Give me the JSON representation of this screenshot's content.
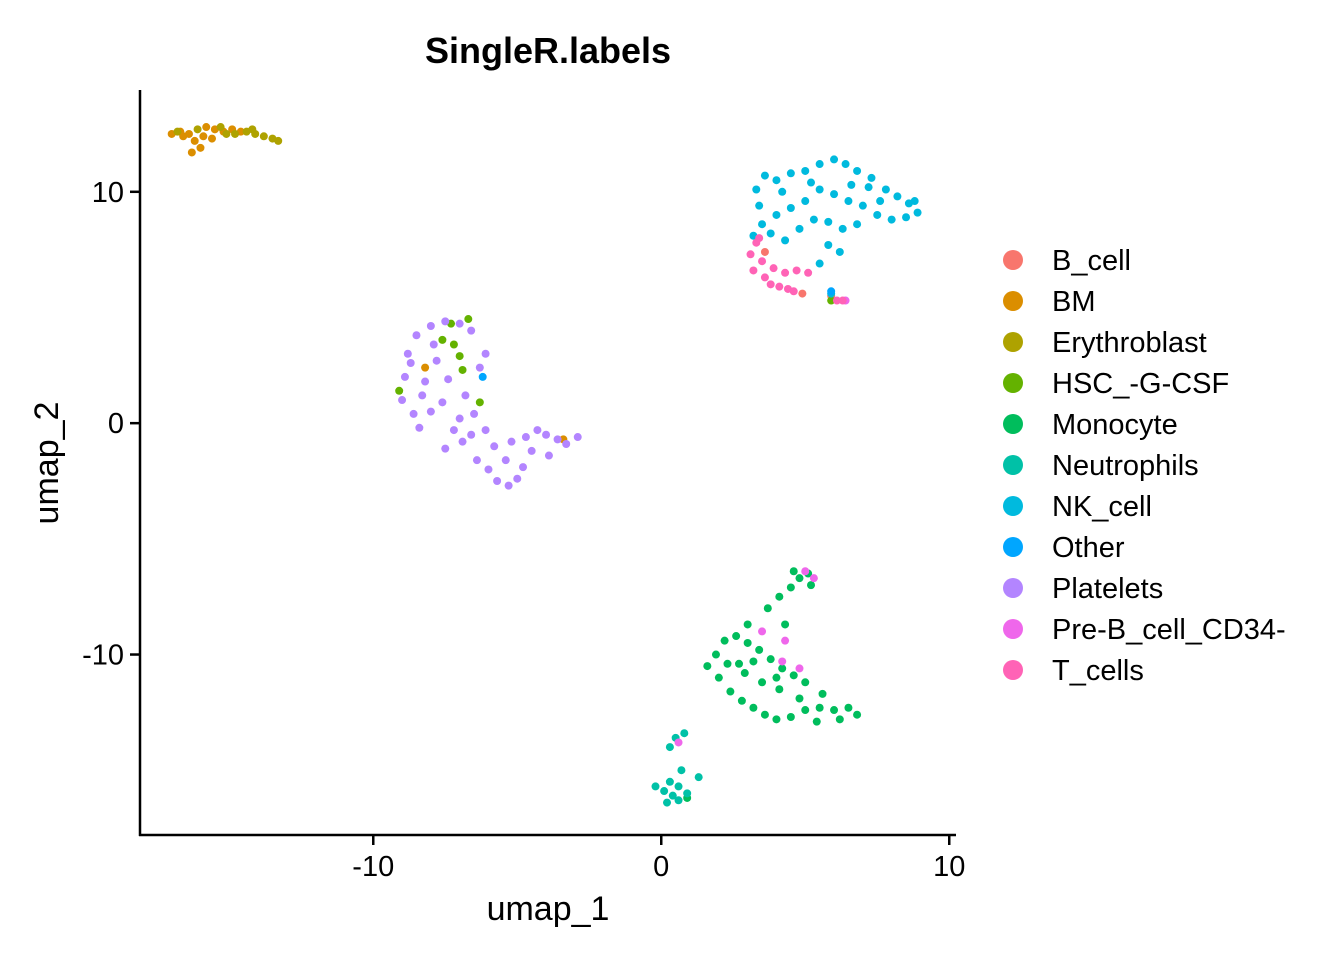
{
  "chart_data": {
    "type": "scatter",
    "title": "SingleR.labels",
    "xlabel": "umap_1",
    "ylabel": "umap_2",
    "xlim": [
      -18.1,
      10.2
    ],
    "ylim": [
      -17.8,
      14.4
    ],
    "xticks": [
      -10,
      0,
      10
    ],
    "yticks": [
      -10,
      0,
      10
    ],
    "xtick_labels": [
      "-10",
      "0",
      "10"
    ],
    "ytick_labels": [
      "-10",
      "0",
      "10"
    ],
    "grid": false,
    "legend_position": "right",
    "series": [
      {
        "name": "B_cell",
        "color": "#F8766D",
        "points": [
          [
            4.9,
            5.6
          ],
          [
            5.9,
            5.5
          ],
          [
            3.6,
            7.4
          ]
        ]
      },
      {
        "name": "BM",
        "color": "#DB8E00",
        "points": [
          [
            -17,
            12.5
          ],
          [
            -16.7,
            12.6
          ],
          [
            -16.4,
            12.5
          ],
          [
            -16.2,
            12.2
          ],
          [
            -16,
            11.9
          ],
          [
            -16.3,
            11.7
          ],
          [
            -15.8,
            12.8
          ],
          [
            -15.5,
            12.7
          ],
          [
            -15.2,
            12.6
          ],
          [
            -14.9,
            12.7
          ],
          [
            -15.6,
            12.3
          ],
          [
            -16.6,
            12.4
          ],
          [
            -14.6,
            12.6
          ],
          [
            -15.9,
            12.4
          ],
          [
            -3.4,
            -0.7
          ],
          [
            -8.2,
            2.4
          ]
        ]
      },
      {
        "name": "Erythroblast",
        "color": "#AEA200",
        "points": [
          [
            -16.8,
            12.6
          ],
          [
            -16.1,
            12.7
          ],
          [
            -15.3,
            12.8
          ],
          [
            -14.8,
            12.5
          ],
          [
            -14.4,
            12.6
          ],
          [
            -14.1,
            12.5
          ],
          [
            -13.8,
            12.4
          ],
          [
            -13.5,
            12.3
          ],
          [
            -13.3,
            12.2
          ],
          [
            -14.2,
            12.7
          ],
          [
            -15.1,
            12.5
          ]
        ]
      },
      {
        "name": "HSC_-G-CSF",
        "color": "#64B200",
        "points": [
          [
            -7.3,
            4.3
          ],
          [
            -6.7,
            4.5
          ],
          [
            -7.6,
            3.6
          ],
          [
            -7,
            2.9
          ],
          [
            -7.2,
            3.4
          ],
          [
            -9.1,
            1.4
          ],
          [
            -6.9,
            2.3
          ],
          [
            -6.3,
            0.9
          ],
          [
            5.9,
            5.3
          ]
        ]
      },
      {
        "name": "Monocyte",
        "color": "#00BD5C",
        "points": [
          [
            1.6,
            -10.5
          ],
          [
            1.9,
            -10.0
          ],
          [
            2.2,
            -9.4
          ],
          [
            2.6,
            -9.2
          ],
          [
            3.0,
            -9.5
          ],
          [
            3.4,
            -9.8
          ],
          [
            3.8,
            -10.2
          ],
          [
            4.2,
            -10.6
          ],
          [
            4.6,
            -10.9
          ],
          [
            5.0,
            -11.2
          ],
          [
            2.0,
            -11.0
          ],
          [
            2.4,
            -11.6
          ],
          [
            2.8,
            -12.0
          ],
          [
            3.2,
            -12.3
          ],
          [
            3.6,
            -12.6
          ],
          [
            4.0,
            -12.8
          ],
          [
            4.5,
            -12.7
          ],
          [
            5.0,
            -12.4
          ],
          [
            5.5,
            -12.3
          ],
          [
            6.0,
            -12.4
          ],
          [
            6.5,
            -12.3
          ],
          [
            6.8,
            -12.6
          ],
          [
            6.2,
            -12.8
          ],
          [
            5.4,
            -12.9
          ],
          [
            4.8,
            -11.9
          ],
          [
            4.1,
            -11.5
          ],
          [
            3.5,
            -11.2
          ],
          [
            2.9,
            -10.8
          ],
          [
            2.3,
            -10.4
          ],
          [
            3.2,
            -10.3
          ],
          [
            4.0,
            -11.0
          ],
          [
            5.6,
            -11.7
          ],
          [
            3.0,
            -8.7
          ],
          [
            3.7,
            -8.0
          ],
          [
            4.1,
            -7.5
          ],
          [
            4.5,
            -7.1
          ],
          [
            4.8,
            -6.7
          ],
          [
            5.1,
            -6.5
          ],
          [
            4.6,
            -6.4
          ],
          [
            5.2,
            -7.0
          ],
          [
            4.3,
            -8.7
          ],
          [
            2.7,
            -10.4
          ],
          [
            0.9,
            -16.2
          ]
        ]
      },
      {
        "name": "Neutrophils",
        "color": "#00C1A7",
        "points": [
          [
            -0.2,
            -15.7
          ],
          [
            0.1,
            -15.9
          ],
          [
            0.4,
            -16.1
          ],
          [
            0.6,
            -16.3
          ],
          [
            0.9,
            -16.0
          ],
          [
            0.3,
            -15.5
          ],
          [
            0.6,
            -15.7
          ],
          [
            1.3,
            -15.3
          ],
          [
            0.3,
            -14.0
          ],
          [
            0.5,
            -13.6
          ],
          [
            0.8,
            -13.4
          ],
          [
            0.2,
            -16.4
          ],
          [
            0.7,
            -15.0
          ]
        ]
      },
      {
        "name": "NK_cell",
        "color": "#00BADE",
        "points": [
          [
            3.3,
            10.1
          ],
          [
            3.6,
            10.7
          ],
          [
            4.0,
            10.5
          ],
          [
            4.5,
            10.8
          ],
          [
            5.0,
            10.9
          ],
          [
            5.5,
            11.2
          ],
          [
            6.0,
            11.4
          ],
          [
            6.4,
            11.2
          ],
          [
            6.8,
            10.9
          ],
          [
            7.3,
            10.6
          ],
          [
            7.8,
            10.1
          ],
          [
            8.2,
            9.8
          ],
          [
            8.6,
            9.5
          ],
          [
            8.9,
            9.1
          ],
          [
            8.5,
            8.9
          ],
          [
            8.0,
            8.8
          ],
          [
            7.5,
            9.0
          ],
          [
            7.0,
            9.4
          ],
          [
            6.5,
            9.6
          ],
          [
            6.0,
            9.9
          ],
          [
            5.5,
            10.1
          ],
          [
            5.0,
            9.6
          ],
          [
            4.5,
            9.3
          ],
          [
            4.0,
            9.0
          ],
          [
            3.5,
            8.6
          ],
          [
            3.2,
            8.1
          ],
          [
            3.8,
            8.2
          ],
          [
            4.3,
            7.9
          ],
          [
            4.8,
            8.4
          ],
          [
            5.3,
            8.8
          ],
          [
            5.8,
            8.7
          ],
          [
            6.3,
            8.4
          ],
          [
            6.8,
            8.6
          ],
          [
            5.8,
            7.7
          ],
          [
            5.5,
            6.9
          ],
          [
            6.2,
            7.4
          ],
          [
            7.2,
            10.2
          ],
          [
            4.2,
            10.0
          ],
          [
            5.2,
            10.4
          ],
          [
            6.6,
            10.3
          ],
          [
            7.6,
            9.6
          ],
          [
            8.8,
            9.6
          ],
          [
            3.4,
            9.4
          ],
          [
            5.9,
            5.6
          ]
        ]
      },
      {
        "name": "Other",
        "color": "#00A6FF",
        "points": [
          [
            -6.2,
            2.0
          ],
          [
            5.9,
            5.7
          ]
        ]
      },
      {
        "name": "Platelets",
        "color": "#B385FF",
        "points": [
          [
            -8.8,
            3.0
          ],
          [
            -8.5,
            3.8
          ],
          [
            -8.0,
            4.2
          ],
          [
            -7.5,
            4.4
          ],
          [
            -7.0,
            4.3
          ],
          [
            -6.6,
            4.0
          ],
          [
            -8.9,
            2.0
          ],
          [
            -9.0,
            1.0
          ],
          [
            -8.6,
            0.4
          ],
          [
            -8.2,
            1.8
          ],
          [
            -7.8,
            2.7
          ],
          [
            -7.4,
            1.9
          ],
          [
            -6.8,
            1.2
          ],
          [
            -6.3,
            2.4
          ],
          [
            -8.4,
            -0.2
          ],
          [
            -8.0,
            0.5
          ],
          [
            -7.6,
            0.9
          ],
          [
            -7.2,
            -0.3
          ],
          [
            -6.9,
            -0.8
          ],
          [
            -7.5,
            -1.1
          ],
          [
            -6.6,
            -0.5
          ],
          [
            -6.4,
            -1.6
          ],
          [
            -6.0,
            -2.0
          ],
          [
            -5.7,
            -2.5
          ],
          [
            -5.3,
            -2.7
          ],
          [
            -5.0,
            -2.4
          ],
          [
            -4.8,
            -1.9
          ],
          [
            -5.4,
            -1.6
          ],
          [
            -5.8,
            -1.0
          ],
          [
            -6.1,
            -0.3
          ],
          [
            -5.2,
            -0.8
          ],
          [
            -4.7,
            -0.6
          ],
          [
            -4.3,
            -0.3
          ],
          [
            -4.0,
            -0.5
          ],
          [
            -3.6,
            -0.7
          ],
          [
            -3.3,
            -0.9
          ],
          [
            -2.9,
            -0.6
          ],
          [
            -4.5,
            -1.2
          ],
          [
            -3.9,
            -1.4
          ],
          [
            -7.9,
            3.4
          ],
          [
            -8.7,
            2.6
          ],
          [
            -6.1,
            3.0
          ],
          [
            -8.3,
            1.2
          ],
          [
            -7.0,
            0.2
          ],
          [
            -6.5,
            0.4
          ]
        ]
      },
      {
        "name": "Pre-B_cell_CD34-",
        "color": "#EF67EB",
        "points": [
          [
            5.0,
            -6.4
          ],
          [
            5.3,
            -6.7
          ],
          [
            4.3,
            -9.4
          ],
          [
            3.5,
            -9.0
          ],
          [
            4.8,
            -10.6
          ],
          [
            0.6,
            -13.8
          ],
          [
            6.4,
            5.3
          ],
          [
            4.2,
            -10.3
          ]
        ]
      },
      {
        "name": "T_cells",
        "color": "#FF63B6",
        "points": [
          [
            3.1,
            7.3
          ],
          [
            3.3,
            7.8
          ],
          [
            3.5,
            7.0
          ],
          [
            3.2,
            6.6
          ],
          [
            3.6,
            6.3
          ],
          [
            3.8,
            6.0
          ],
          [
            4.1,
            5.9
          ],
          [
            4.4,
            5.8
          ],
          [
            4.6,
            5.7
          ],
          [
            3.9,
            6.7
          ],
          [
            4.3,
            6.5
          ],
          [
            3.4,
            8.0
          ],
          [
            5.1,
            6.5
          ],
          [
            6.1,
            5.3
          ],
          [
            6.3,
            5.3
          ],
          [
            4.7,
            6.6
          ]
        ]
      }
    ]
  }
}
